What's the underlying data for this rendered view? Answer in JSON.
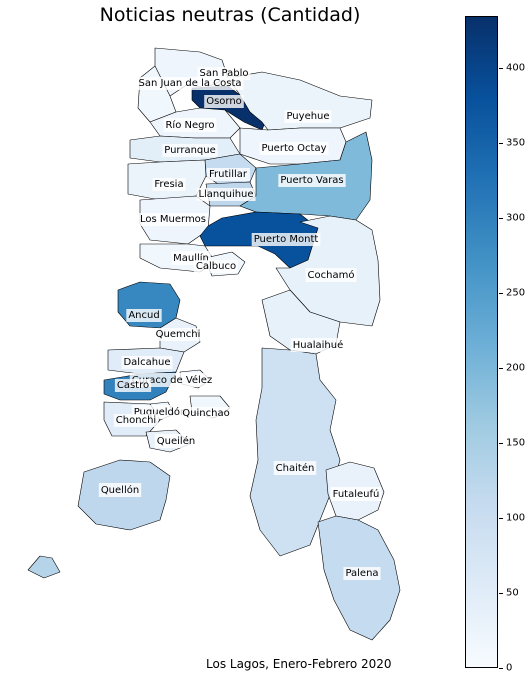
{
  "title": "Noticias neutras (Cantidad)",
  "caption": "Los Lagos, Enero-Febrero 2020",
  "colors": {
    "scale_low": "#f7fbff",
    "scale_mid": "#6baed6",
    "scale_high": "#08306b",
    "border": "#000000"
  },
  "colorbar": {
    "min": 0,
    "max": 435,
    "ticks": [
      "0",
      "50",
      "100",
      "150",
      "200",
      "250",
      "300",
      "350",
      "400"
    ]
  },
  "comunas": [
    {
      "name": "San Pablo",
      "value": 20
    },
    {
      "name": "San Juan de la Costa",
      "value": 15
    },
    {
      "name": "Osorno",
      "value": 435
    },
    {
      "name": "Puyehue",
      "value": 25
    },
    {
      "name": "Río Negro",
      "value": 20
    },
    {
      "name": "Purranque",
      "value": 45
    },
    {
      "name": "Puerto Octay",
      "value": 20
    },
    {
      "name": "Frutillar",
      "value": 110
    },
    {
      "name": "Fresia",
      "value": 25
    },
    {
      "name": "Llanquihue",
      "value": 120
    },
    {
      "name": "Puerto Varas",
      "value": 195
    },
    {
      "name": "Los Muermos",
      "value": 20
    },
    {
      "name": "Puerto Montt",
      "value": 380
    },
    {
      "name": "Maullín",
      "value": 15
    },
    {
      "name": "Calbuco",
      "value": 15
    },
    {
      "name": "Cochamó",
      "value": 35
    },
    {
      "name": "Ancud",
      "value": 290
    },
    {
      "name": "Quemchi",
      "value": 30
    },
    {
      "name": "Hualaihué",
      "value": 35
    },
    {
      "name": "Dalcahue",
      "value": 50
    },
    {
      "name": "Curaco de Vélez",
      "value": 10
    },
    {
      "name": "Castro",
      "value": 300
    },
    {
      "name": "Puqueldón",
      "value": 15
    },
    {
      "name": "Quinchao",
      "value": 15
    },
    {
      "name": "Chonchi",
      "value": 50
    },
    {
      "name": "Queilén",
      "value": 30
    },
    {
      "name": "Chaitén",
      "value": 90
    },
    {
      "name": "Quellón",
      "value": 120
    },
    {
      "name": "Futaleufú",
      "value": 30
    },
    {
      "name": "Palena",
      "value": 110
    }
  ]
}
